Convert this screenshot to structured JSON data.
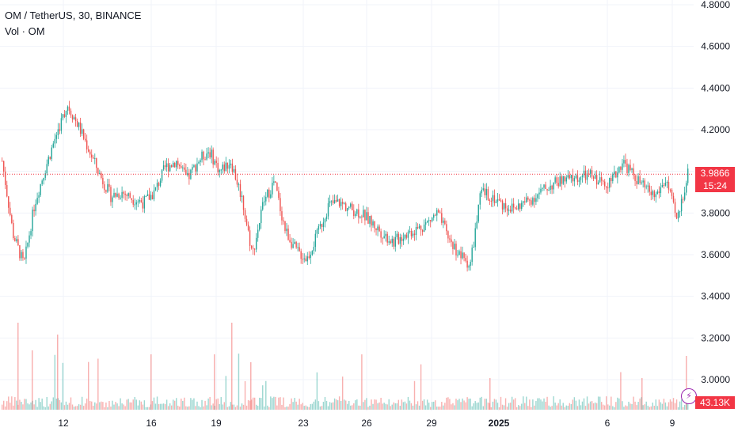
{
  "legend": {
    "symbol_line": "OM / TetherUS, 30, BINANCE",
    "volume_line": "Vol · OM"
  },
  "price_tag": {
    "price": "3.9866",
    "countdown": "15:24"
  },
  "volume_tag": "43.13K",
  "colors": {
    "up": "#26a69a",
    "down": "#ef5350",
    "grid": "#f0f3fa",
    "last_price": "#f23645"
  },
  "chart_data": {
    "type": "candlestick",
    "title": "OM / TetherUS, 30, BINANCE",
    "y_axis": {
      "ticks": [
        "4.8000",
        "4.6000",
        "4.4000",
        "4.2000",
        "4.0000",
        "3.8000",
        "3.6000",
        "3.4000",
        "3.2000",
        "3.0000"
      ],
      "ylim": [
        2.88,
        4.8
      ],
      "position": "right"
    },
    "x_axis": {
      "ticks": [
        "12",
        "16",
        "19",
        "23",
        "26",
        "29",
        "2025",
        "6",
        "9"
      ]
    },
    "last_price": 3.9866,
    "series": [
      {
        "name": "OM",
        "comment": "Approximate price path (close values) read from the chart, one point per ~half-day segment",
        "x": [
          "Dec 9",
          "Dec 9.5",
          "Dec 10",
          "Dec 10.5",
          "Dec 11",
          "Dec 11.5",
          "Dec 12",
          "Dec 12.5",
          "Dec 13",
          "Dec 13.5",
          "Dec 14",
          "Dec 14.5",
          "Dec 15",
          "Dec 15.5",
          "Dec 16",
          "Dec 16.5",
          "Dec 17",
          "Dec 17.5",
          "Dec 18",
          "Dec 18.5",
          "Dec 19",
          "Dec 19.5",
          "Dec 20",
          "Dec 20.5",
          "Dec 21",
          "Dec 21.5",
          "Dec 22",
          "Dec 22.5",
          "Dec 23",
          "Dec 23.5",
          "Dec 24",
          "Dec 24.5",
          "Dec 25",
          "Dec 25.5",
          "Dec 26",
          "Dec 26.5",
          "Dec 27",
          "Dec 27.5",
          "Dec 28",
          "Dec 28.5",
          "Dec 29",
          "Dec 29.5",
          "Dec 30",
          "Dec 30.5",
          "Dec 31",
          "Dec 31.5",
          "Jan 1",
          "Jan 1.5",
          "Jan 2",
          "Jan 2.5",
          "Jan 3",
          "Jan 3.5",
          "Jan 4",
          "Jan 4.5",
          "Jan 5",
          "Jan 5.5",
          "Jan 6",
          "Jan 6.5",
          "Jan 7",
          "Jan 7.5",
          "Jan 8",
          "Jan 8.5",
          "Jan 9",
          "Jan 9.3"
        ],
        "close": [
          4.05,
          3.7,
          3.55,
          3.85,
          4.02,
          4.18,
          4.32,
          4.22,
          4.1,
          3.98,
          3.88,
          3.9,
          3.87,
          3.85,
          3.9,
          4.02,
          4.05,
          3.96,
          4.05,
          4.1,
          4.0,
          4.05,
          3.88,
          3.6,
          3.85,
          3.95,
          3.72,
          3.62,
          3.58,
          3.7,
          3.84,
          3.85,
          3.82,
          3.8,
          3.75,
          3.7,
          3.66,
          3.7,
          3.72,
          3.75,
          3.8,
          3.68,
          3.6,
          3.55,
          3.9,
          3.88,
          3.84,
          3.82,
          3.85,
          3.88,
          3.92,
          3.95,
          3.96,
          3.97,
          3.98,
          3.95,
          3.95,
          4.05,
          3.98,
          3.92,
          3.88,
          3.96,
          3.76,
          3.99
        ]
      }
    ]
  }
}
